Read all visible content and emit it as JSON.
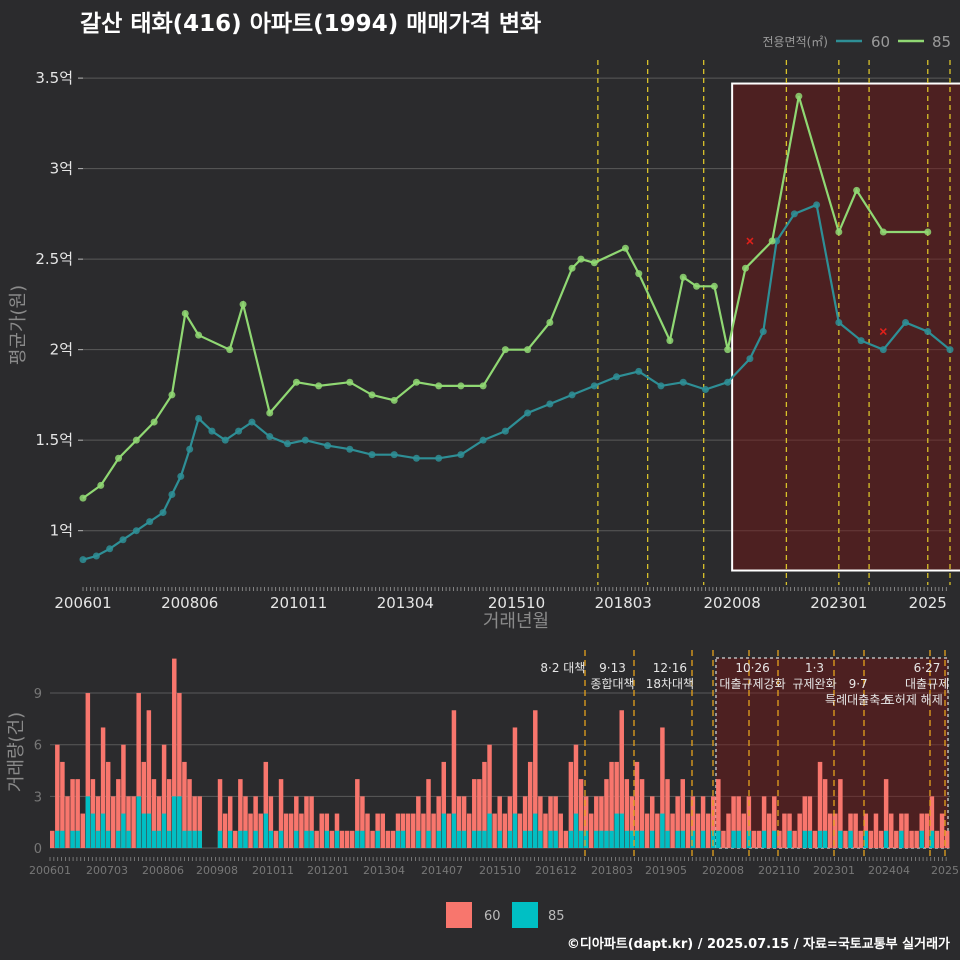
{
  "title": "갈산 태화(416) 아파트(1994) 매매가격 변화",
  "credit": "©디아파트(dapt.kr) / 2025.07.15 / 자료=국토교통부 실거래가",
  "colors": {
    "bg": "#2b2b2d",
    "s60": "#2e8f96",
    "s85": "#90d873",
    "bar60": "#f8766d",
    "bar85": "#00bfc4",
    "policy": "#d9c22a",
    "policy_bar": "#e5a21c",
    "highlight": "rgba(120,20,20,0.45)",
    "marker": "#e0201a"
  },
  "legend": {
    "title": "전용면적(㎡)",
    "items": [
      "60",
      "85"
    ]
  },
  "bar_legend": {
    "items": [
      "60",
      "85"
    ]
  },
  "policy_labels": [
    {
      "x": 2017.17,
      "lines": [
        "8·2 대책"
      ]
    },
    {
      "x": 2018.25,
      "lines": [
        "9·13",
        "종합대책"
      ]
    },
    {
      "x": 2019.5,
      "lines": [
        "12·16",
        "18차대책"
      ]
    },
    {
      "x": 2021.3,
      "lines": [
        "10·26",
        "대출규제강화"
      ]
    },
    {
      "x": 2022.65,
      "lines": [
        "1·3",
        "규제완화"
      ]
    },
    {
      "x": 2023.6,
      "lines": [
        "",
        "9·7",
        "특례대출축소"
      ]
    },
    {
      "x": 2024.8,
      "lines": [
        "",
        "",
        "토허제 해제"
      ]
    },
    {
      "x": 2025.1,
      "lines": [
        "6·27",
        "대출규제"
      ]
    }
  ],
  "chart_data": [
    {
      "type": "line",
      "ylabel": "평균가(원)",
      "xlabel": "거래년월",
      "x_ticks": [
        "200601",
        "200806",
        "201011",
        "201304",
        "201510",
        "201803",
        "202008",
        "202301",
        "2025"
      ],
      "y_ticks": [
        "1억",
        "1.5억",
        "2억",
        "2.5억",
        "3억",
        "3.5억"
      ],
      "ylim": [
        0.7,
        3.6
      ],
      "series": [
        {
          "name": "60",
          "x": [
            2006.0,
            2006.3,
            2006.6,
            2006.9,
            2007.2,
            2007.5,
            2007.8,
            2008.0,
            2008.2,
            2008.4,
            2008.6,
            2008.9,
            2009.2,
            2009.5,
            2009.8,
            2010.2,
            2010.6,
            2011.0,
            2011.5,
            2012.0,
            2012.5,
            2013.0,
            2013.5,
            2014.0,
            2014.5,
            2015.0,
            2015.5,
            2016.0,
            2016.5,
            2017.0,
            2017.5,
            2018.0,
            2018.5,
            2019.0,
            2019.5,
            2020.0,
            2020.5,
            2021.0,
            2021.3,
            2021.6,
            2022.0,
            2022.5,
            2023.0,
            2023.5,
            2024.0,
            2024.5,
            2025.0,
            2025.5
          ],
          "values": [
            0.84,
            0.86,
            0.9,
            0.95,
            1.0,
            1.05,
            1.1,
            1.2,
            1.3,
            1.45,
            1.62,
            1.55,
            1.5,
            1.55,
            1.6,
            1.52,
            1.48,
            1.5,
            1.47,
            1.45,
            1.42,
            1.42,
            1.4,
            1.4,
            1.42,
            1.5,
            1.55,
            1.65,
            1.7,
            1.75,
            1.8,
            1.85,
            1.88,
            1.8,
            1.82,
            1.78,
            1.82,
            1.95,
            2.1,
            2.6,
            2.75,
            2.8,
            2.15,
            2.05,
            2.0,
            2.15,
            2.1,
            2.0
          ]
        },
        {
          "name": "85",
          "x": [
            2006.0,
            2006.4,
            2006.8,
            2007.2,
            2007.6,
            2008.0,
            2008.3,
            2008.6,
            2009.3,
            2009.6,
            2010.2,
            2010.8,
            2011.3,
            2012.0,
            2012.5,
            2013.0,
            2013.5,
            2014.0,
            2014.5,
            2015.0,
            2015.5,
            2016.0,
            2016.5,
            2017.0,
            2017.2,
            2017.5,
            2018.2,
            2018.5,
            2019.2,
            2019.5,
            2019.8,
            2020.2,
            2020.5,
            2020.9,
            2021.5,
            2022.1,
            2023.0,
            2023.4,
            2024.0,
            2025.0
          ],
          "values": [
            1.18,
            1.25,
            1.4,
            1.5,
            1.6,
            1.75,
            2.2,
            2.08,
            2.0,
            2.25,
            1.65,
            1.82,
            1.8,
            1.82,
            1.75,
            1.72,
            1.82,
            1.8,
            1.8,
            1.8,
            2.0,
            2.0,
            2.15,
            2.45,
            2.5,
            2.48,
            2.56,
            2.42,
            2.05,
            2.4,
            2.35,
            2.35,
            2.0,
            2.45,
            2.6,
            3.4,
            2.65,
            2.88,
            2.65,
            2.65
          ]
        }
      ],
      "markers": [
        {
          "x": 2021.0,
          "y": 2.6
        },
        {
          "x": 2024.0,
          "y": 2.1
        }
      ],
      "policy_dates": [
        2017.58,
        2018.7,
        2019.96,
        2021.82,
        2023.0,
        2023.68,
        2025.0,
        2025.5
      ],
      "highlight": {
        "x0": 2020.6,
        "x1": 2025.8,
        "y0": 0.78,
        "y1": 3.47
      }
    },
    {
      "type": "bar",
      "ylabel": "거래량(건)",
      "x_ticks": [
        "200601",
        "200703",
        "200806",
        "200908",
        "201011",
        "201201",
        "201304",
        "201407",
        "201510",
        "201612",
        "201803",
        "201905",
        "202008",
        "202110",
        "202301",
        "202404",
        "2025"
      ],
      "y_ticks": [
        "0",
        "3",
        "6",
        "9"
      ],
      "ylim": [
        0,
        11.5
      ],
      "series": [
        {
          "name": "60",
          "values": [
            1,
            6,
            5,
            3,
            4,
            4,
            2,
            9,
            4,
            3,
            7,
            5,
            3,
            4,
            6,
            3,
            3,
            9,
            5,
            8,
            4,
            3,
            6,
            4,
            11,
            9,
            5,
            4,
            3,
            3,
            0,
            0,
            0,
            4,
            2,
            3,
            1,
            4,
            3,
            2,
            3,
            2,
            5,
            3,
            1,
            4,
            2,
            2,
            3,
            2,
            3,
            3,
            1,
            2,
            2,
            1,
            2,
            1,
            1,
            1,
            4,
            3,
            2,
            1,
            2,
            2,
            1,
            1,
            2,
            2,
            2,
            2,
            3,
            2,
            4,
            2,
            3,
            5,
            2,
            8,
            3,
            3,
            2,
            4,
            4,
            5,
            6,
            2,
            3,
            2,
            3,
            7,
            2,
            3,
            5,
            8,
            3,
            2,
            3,
            3,
            2,
            1,
            5,
            6,
            4,
            3,
            2,
            3,
            3,
            4,
            5,
            5,
            8,
            4,
            3,
            5,
            4,
            2,
            3,
            2,
            7,
            4,
            2,
            3,
            4,
            2,
            3,
            2,
            3,
            2,
            3,
            4,
            1,
            2,
            3,
            3,
            2,
            3,
            1,
            1,
            3,
            2,
            3,
            1,
            2,
            2,
            1,
            2,
            3,
            3,
            1,
            5,
            4,
            2,
            2,
            4,
            1,
            2,
            2,
            1,
            2,
            1,
            2,
            1,
            4,
            2,
            1,
            2,
            2,
            1,
            1,
            2,
            2,
            3,
            1,
            2,
            1
          ]
        },
        {
          "name": "85",
          "values": [
            0,
            1,
            1,
            0,
            1,
            1,
            0,
            3,
            2,
            1,
            2,
            1,
            0,
            1,
            2,
            1,
            0,
            3,
            2,
            2,
            1,
            1,
            2,
            1,
            3,
            3,
            1,
            1,
            1,
            1,
            0,
            0,
            0,
            1,
            0,
            1,
            0,
            1,
            1,
            0,
            1,
            0,
            2,
            1,
            0,
            1,
            0,
            0,
            1,
            0,
            1,
            1,
            0,
            0,
            1,
            0,
            1,
            0,
            0,
            0,
            1,
            1,
            0,
            0,
            1,
            0,
            0,
            0,
            1,
            1,
            0,
            0,
            1,
            0,
            1,
            0,
            1,
            2,
            0,
            2,
            1,
            1,
            0,
            1,
            1,
            1,
            2,
            0,
            1,
            0,
            1,
            2,
            0,
            1,
            1,
            2,
            1,
            0,
            1,
            1,
            0,
            0,
            1,
            2,
            1,
            1,
            0,
            1,
            1,
            1,
            1,
            2,
            2,
            1,
            1,
            1,
            1,
            0,
            1,
            0,
            2,
            1,
            0,
            1,
            1,
            0,
            1,
            0,
            1,
            0,
            1,
            1,
            0,
            0,
            1,
            1,
            0,
            1,
            0,
            0,
            1,
            0,
            1,
            0,
            0,
            1,
            0,
            0,
            1,
            1,
            0,
            1,
            1,
            0,
            0,
            1,
            0,
            1,
            0,
            0,
            1,
            0,
            0,
            0,
            1,
            0,
            0,
            1,
            0,
            0,
            0,
            1,
            0,
            1,
            0,
            0,
            0
          ]
        }
      ]
    }
  ]
}
